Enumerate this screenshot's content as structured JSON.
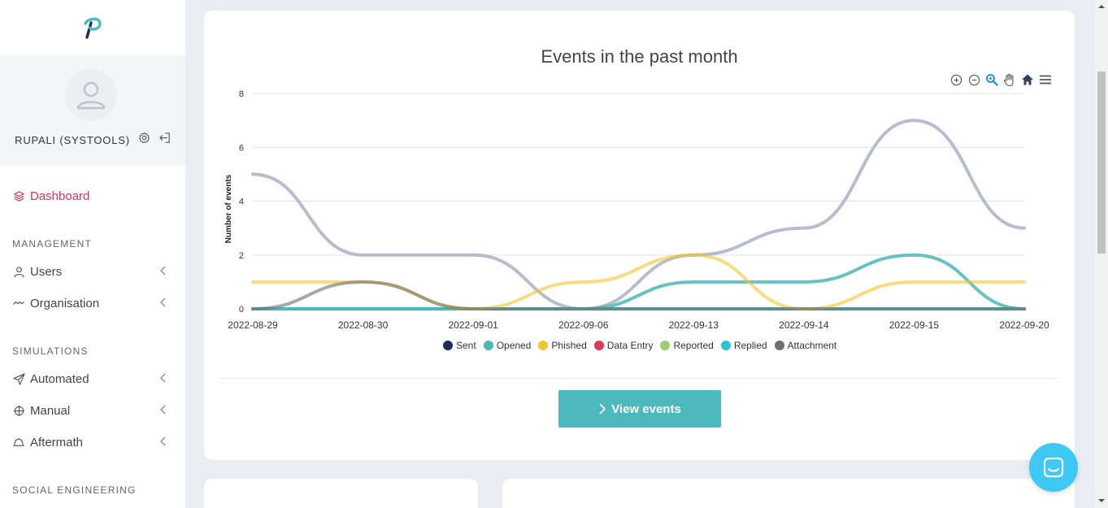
{
  "user": {
    "name": "RUPALI (SYSTOOLS)"
  },
  "nav": {
    "dashboard": "Dashboard",
    "management_label": "MANAGEMENT",
    "users": "Users",
    "organisation": "Organisation",
    "simulations_label": "SIMULATIONS",
    "automated": "Automated",
    "manual": "Manual",
    "aftermath": "Aftermath",
    "social_label": "SOCIAL ENGINEERING"
  },
  "colors": {
    "accent": "#e0305a",
    "button": "#4bb9bd",
    "chat": "#3ec8f4"
  },
  "view_events_label": "View events",
  "chart_data": {
    "type": "line",
    "title": "Events in the past month",
    "ylabel": "Number of events",
    "xlabel": "",
    "categories": [
      "2022-08-29",
      "2022-08-30",
      "2022-09-01",
      "2022-09-06",
      "2022-09-13",
      "2022-09-14",
      "2022-09-15",
      "2022-09-20"
    ],
    "ylim": [
      0,
      8
    ],
    "yticks": [
      0,
      2,
      4,
      6,
      8
    ],
    "legend_position": "bottom",
    "series": [
      {
        "name": "Sent",
        "color": "#1f2f5c",
        "values": [
          0,
          0,
          0,
          0,
          0,
          0,
          0,
          0
        ]
      },
      {
        "name": "Opened",
        "color": "#4bb9b7",
        "values": [
          0,
          0,
          0,
          0,
          1,
          1,
          2,
          0
        ]
      },
      {
        "name": "Phished",
        "color": "#f5c32c",
        "values": [
          1,
          1,
          0,
          1,
          2,
          0,
          1,
          1
        ]
      },
      {
        "name": "Data Entry",
        "color": "#e03a55",
        "values": [
          0,
          0,
          0,
          0,
          0,
          0,
          0,
          0
        ]
      },
      {
        "name": "Reported",
        "color": "#9dce6b",
        "values": [
          0,
          0,
          0,
          0,
          0,
          0,
          0,
          0
        ]
      },
      {
        "name": "Replied",
        "color": "#26c6d0",
        "values": [
          0,
          0,
          0,
          0,
          0,
          0,
          0,
          0
        ]
      },
      {
        "name": "Attachment",
        "color": "#6e6e6e",
        "values": [
          0,
          1,
          0,
          0,
          0,
          0,
          0,
          0
        ]
      },
      {
        "name": "",
        "color": "#a9b1c4",
        "values": [
          5,
          2,
          2,
          0,
          2,
          3,
          7,
          3
        ]
      }
    ]
  }
}
